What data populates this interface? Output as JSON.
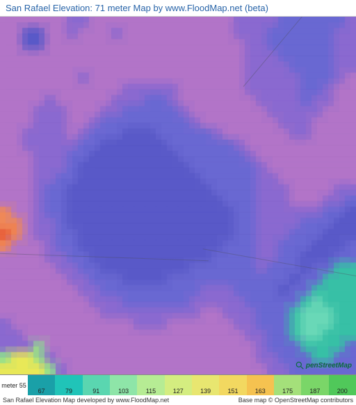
{
  "title": "San Rafael Elevation: 71 meter Map by www.FloodMap.net (beta)",
  "logo_text": "penStreetMap",
  "legend": {
    "unit_label": "meter",
    "start_value": 55,
    "swatches": [
      {
        "color": "#1aa0a8",
        "tick": 67
      },
      {
        "color": "#20c4b8",
        "tick": 79
      },
      {
        "color": "#5ad6b0",
        "tick": 91
      },
      {
        "color": "#8ee5a8",
        "tick": 103
      },
      {
        "color": "#b6ec94",
        "tick": 115
      },
      {
        "color": "#d4ed80",
        "tick": 127
      },
      {
        "color": "#e8e670",
        "tick": 139
      },
      {
        "color": "#f2d860",
        "tick": 151
      },
      {
        "color": "#f5c250",
        "tick": 163
      },
      {
        "color": "#a4e07a",
        "tick": 175
      },
      {
        "color": "#7ad668",
        "tick": 187
      },
      {
        "color": "#50c85a",
        "tick": 200
      }
    ]
  },
  "footer": {
    "left": "San Rafael Elevation Map developed by www.FloodMap.net",
    "right": "Base map © OpenStreetMap contributors"
  },
  "map": {
    "grid_cols": 32,
    "grid_rows": 32,
    "palette": {
      "vlow": "#5a5ac8",
      "low": "#6a68d2",
      "mid": "#8a6ad0",
      "mlo": "#9a72d2",
      "high": "#b276c8",
      "vhigh": "#c47ec4",
      "orange": "#f08858",
      "red": "#e85c3a",
      "teal": "#3ac0a8",
      "teal2": "#58cfa8",
      "aqua": "#6ad8b8",
      "green": "#8ee090",
      "yellow": "#e8e858"
    },
    "cells": [
      "hhhhhhmmhhhhhhhhhhhhhmmmmllllllm",
      "hhvvhhmhhhmhhhhhhhhhhmmmllllllmm",
      "hhvvhhhhhhhhhhhhhhhhhhmmllllllmm",
      "hhhhhhhhhhhhhhhhhhhhhhmmmlllllmm",
      "hhhhhhhhhhhhhhhhhhhhhhmmmmllllmm",
      "hhhhhhhmhhhhhhhhhhhhhhmmmmmlllmh",
      "hhhhhhhhhhhmmmmmhhhhhhmmmmmllmhh",
      "hhhhmhhhhhmmmllmhhhhhhhmmmmlmmhh",
      "hhhmmmhhhmmlllllmhhhhhhhmmmmmhhh",
      "hhhmmmhhmllllllllmhhhhhhhmmmhhhh",
      "hhmmmmhmlllvvvlllllmhhhhhhmmhhhh",
      "hhmmmmmllvvvvvvllllllmhhhhhhhhhh",
      "hhhmmmllvvvvvvvvllllllmhhhhhhhhh",
      "hhhmmmlvvvvvvvvvvllllllmhhhhhhhh",
      "hhhmmllvvvvvvvvvvvlllllmmhhhhhhh",
      "hhhmllvvvvvvvvvvvvvllllmmmhhhhmm",
      "hhhmllvvvvvvvvvvvvvvlllmmmhhhmml",
      "ohhmllvvvvvvvvvvvvvvvllmmmmmmllv",
      "oohmmlvvvvvvvvvvvvvvvllmmmmlllvv",
      "rohmmllvvvvvvvvvvvvvvllmmmlllvvv",
      "ohhhmllvvvvvvvvvvvvvlllmmlllvvvl",
      "hhhhmmllvvvvvvvvvvvllllmmllvvvll",
      "hhhhhmmllvvvvvvvvllllllmlllvlltt",
      "hhhhhhmmlllvvvvlllllllllllvllttt",
      "hhhhhhhmmlllllllllmmmllllvlltttt",
      "hhhhhhhhmmmllllllmmmmmllllltattt",
      "hhhhhhhhhmmmmmmmmmhhmmmllltaaatt",
      "mhhhhhhhhhhhmmmhhhhhhmmllltaaatt",
      "mmhhhhhhhhhhhhhhhhhhhhmmlltaattt",
      "mmmghhhhhhhhhhhhhhhhhhhmlllttttl",
      "gyygmhhhhhhhhhhhhhhhhhhmmlllttll",
      "yyyygmhhhhhhhhhhhhhhhhhhmmllllll"
    ],
    "cell_map": {
      "v": "vlow",
      "l": "low",
      "m": "mid",
      "h": "high",
      "o": "orange",
      "r": "red",
      "t": "teal",
      "a": "aqua",
      "g": "green",
      "y": "yellow"
    }
  }
}
